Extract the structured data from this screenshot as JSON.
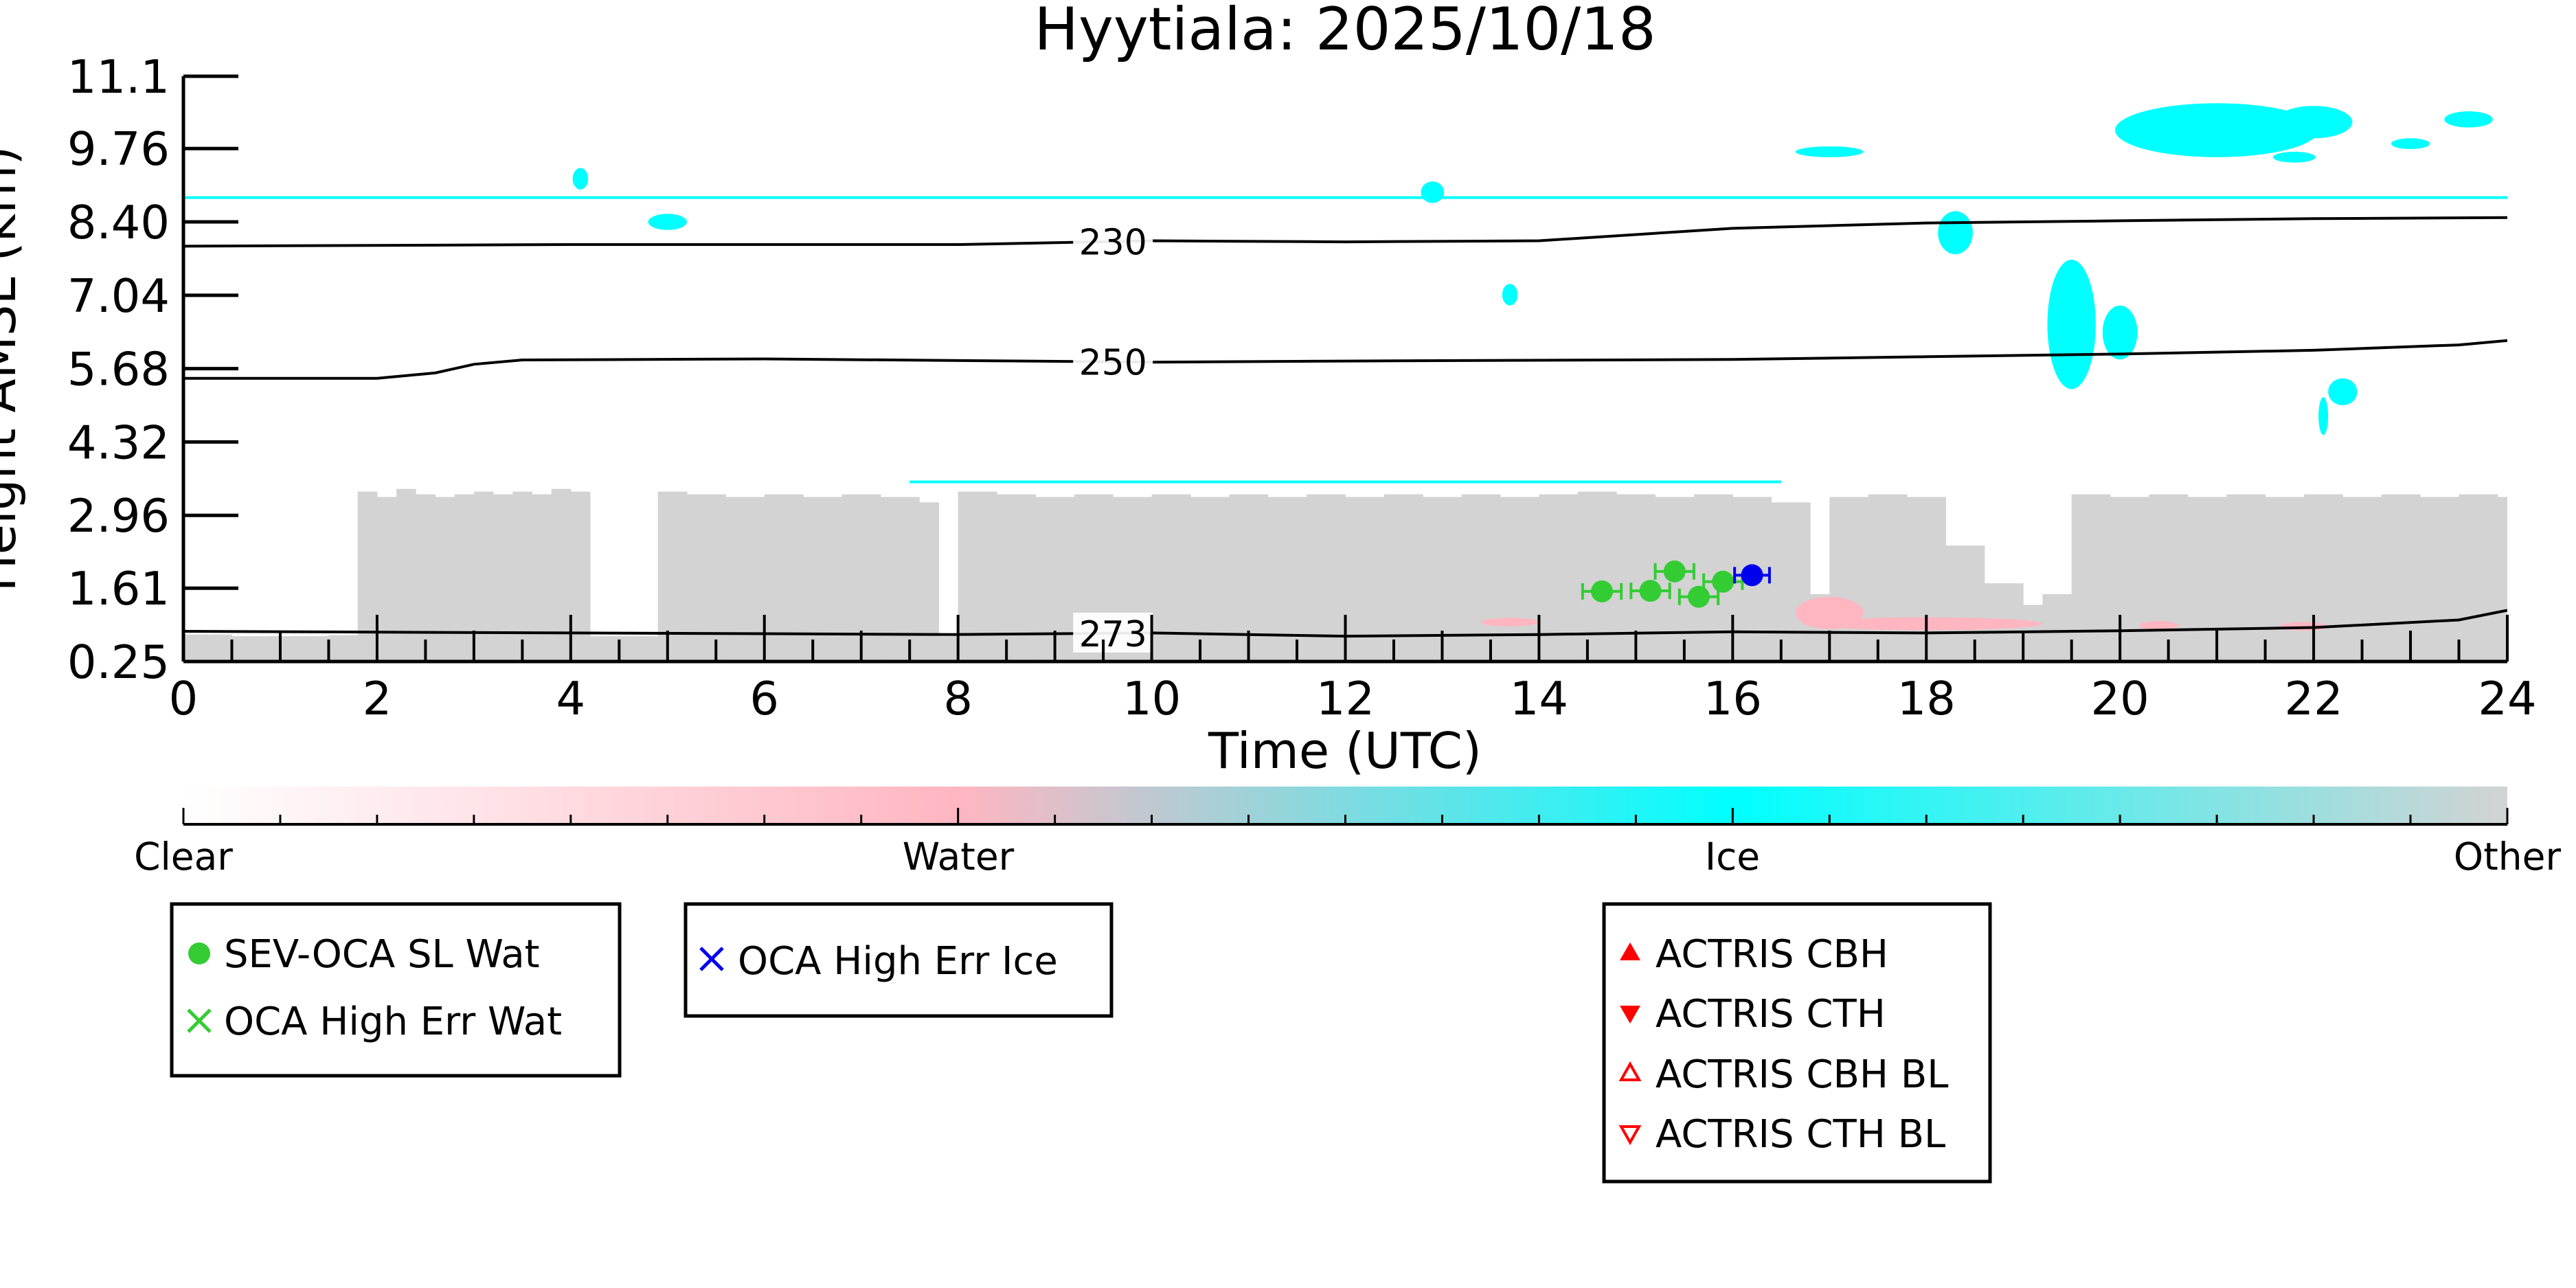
{
  "chart_data": {
    "type": "heatmap",
    "title": "Hyytiala: 2025/10/18",
    "xlabel": "Time (UTC)",
    "ylabel": "Height AMSL (km)",
    "xlim": [
      0,
      24
    ],
    "ylim": [
      0.25,
      11.1
    ],
    "x_ticks": [
      0,
      2,
      4,
      6,
      8,
      10,
      12,
      14,
      16,
      18,
      20,
      22,
      24
    ],
    "y_ticks": [
      0.25,
      1.61,
      2.96,
      4.32,
      5.68,
      7.04,
      8.4,
      9.76,
      11.1
    ],
    "y_tick_labels": [
      "0.25",
      "1.61",
      "2.96",
      "4.32",
      "5.68",
      "7.04",
      "8.40",
      "9.76",
      "11.1"
    ],
    "colors": {
      "clear": "#ffffff",
      "water": "#ffb6c1",
      "ice": "#00ffff",
      "other": "#d3d3d3",
      "sev_oca_water": "#33cc33",
      "oca_ice": "#0000ee",
      "actris": "#ff0000",
      "contour": "#000000"
    },
    "colorbar": {
      "labels": [
        "Clear",
        "Water",
        "Ice",
        "Other"
      ]
    },
    "contours": [
      {
        "label": "230",
        "label_x": 9.6,
        "points": [
          [
            0,
            7.95
          ],
          [
            4,
            7.98
          ],
          [
            8,
            7.98
          ],
          [
            10,
            8.05
          ],
          [
            12,
            8.03
          ],
          [
            14,
            8.05
          ],
          [
            16,
            8.28
          ],
          [
            18,
            8.38
          ],
          [
            20,
            8.42
          ],
          [
            22,
            8.46
          ],
          [
            24,
            8.48
          ]
        ]
      },
      {
        "label": "250",
        "label_x": 9.6,
        "points": [
          [
            0,
            5.5
          ],
          [
            2,
            5.5
          ],
          [
            2.6,
            5.6
          ],
          [
            3,
            5.76
          ],
          [
            3.5,
            5.84
          ],
          [
            6,
            5.86
          ],
          [
            10,
            5.8
          ],
          [
            12,
            5.82
          ],
          [
            16,
            5.85
          ],
          [
            18,
            5.9
          ],
          [
            20,
            5.95
          ],
          [
            22,
            6.02
          ],
          [
            23.5,
            6.12
          ],
          [
            24,
            6.2
          ]
        ]
      },
      {
        "label": "273",
        "label_x": 9.6,
        "points": [
          [
            0,
            0.81
          ],
          [
            4,
            0.78
          ],
          [
            8,
            0.75
          ],
          [
            10,
            0.78
          ],
          [
            12,
            0.72
          ],
          [
            14,
            0.75
          ],
          [
            16,
            0.8
          ],
          [
            18,
            0.78
          ],
          [
            20,
            0.82
          ],
          [
            22,
            0.88
          ],
          [
            23.5,
            1.02
          ],
          [
            24,
            1.2
          ]
        ]
      }
    ],
    "reference_lines": [
      {
        "y": 8.85
      },
      {
        "y": 3.58,
        "xmin": 7.5,
        "xmax": 16.5
      }
    ],
    "regions_other": [
      [
        0,
        0.25,
        0.75
      ],
      [
        0.5,
        0.25,
        0.72
      ],
      [
        1,
        0.25,
        0.72
      ],
      [
        1.5,
        0.25,
        0.74
      ],
      [
        1.8,
        0.25,
        3.4
      ],
      [
        2.0,
        0.25,
        3.3
      ],
      [
        2.2,
        0.25,
        3.45
      ],
      [
        2.4,
        0.25,
        3.35
      ],
      [
        2.6,
        0.25,
        3.3
      ],
      [
        2.8,
        0.25,
        3.35
      ],
      [
        3.0,
        0.25,
        3.4
      ],
      [
        3.2,
        0.25,
        3.35
      ],
      [
        3.4,
        0.25,
        3.4
      ],
      [
        3.6,
        0.25,
        3.35
      ],
      [
        3.8,
        0.25,
        3.45
      ],
      [
        4.0,
        0.25,
        3.4
      ],
      [
        4.2,
        0.25,
        0.72
      ],
      [
        4.4,
        0.25,
        0.72
      ],
      [
        4.6,
        0.25,
        0.72
      ],
      [
        4.9,
        0.25,
        3.4
      ],
      [
        5.2,
        0.25,
        3.35
      ],
      [
        5.6,
        0.25,
        3.3
      ],
      [
        6.0,
        0.25,
        3.35
      ],
      [
        6.4,
        0.25,
        3.3
      ],
      [
        6.8,
        0.25,
        3.35
      ],
      [
        7.2,
        0.25,
        3.3
      ],
      [
        7.6,
        0.25,
        3.2
      ],
      [
        7.8,
        0.25,
        0.72
      ],
      [
        8.0,
        0.25,
        3.4
      ],
      [
        8.4,
        0.25,
        3.35
      ],
      [
        8.8,
        0.25,
        3.3
      ],
      [
        9.2,
        0.25,
        3.35
      ],
      [
        9.6,
        0.25,
        3.3
      ],
      [
        10.0,
        0.25,
        3.35
      ],
      [
        10.4,
        0.25,
        3.3
      ],
      [
        10.8,
        0.25,
        3.35
      ],
      [
        11.2,
        0.25,
        3.3
      ],
      [
        11.6,
        0.25,
        3.35
      ],
      [
        12.0,
        0.25,
        3.3
      ],
      [
        12.4,
        0.25,
        3.35
      ],
      [
        12.8,
        0.25,
        3.3
      ],
      [
        13.2,
        0.25,
        3.35
      ],
      [
        13.6,
        0.25,
        3.3
      ],
      [
        14.0,
        0.25,
        3.35
      ],
      [
        14.4,
        0.25,
        3.4
      ],
      [
        14.8,
        0.25,
        3.35
      ],
      [
        15.2,
        0.25,
        3.3
      ],
      [
        15.6,
        0.25,
        3.35
      ],
      [
        16.0,
        0.25,
        3.3
      ],
      [
        16.4,
        0.25,
        3.2
      ],
      [
        16.8,
        0.25,
        1.5
      ],
      [
        17.0,
        0.25,
        3.3
      ],
      [
        17.4,
        0.25,
        3.35
      ],
      [
        17.8,
        0.25,
        3.3
      ],
      [
        18.2,
        0.25,
        2.4
      ],
      [
        18.6,
        0.25,
        1.7
      ],
      [
        19.0,
        0.25,
        1.3
      ],
      [
        19.2,
        0.25,
        1.5
      ],
      [
        19.5,
        0.25,
        3.35
      ],
      [
        19.9,
        0.25,
        3.3
      ],
      [
        20.3,
        0.25,
        3.35
      ],
      [
        20.7,
        0.25,
        3.3
      ],
      [
        21.1,
        0.25,
        3.35
      ],
      [
        21.5,
        0.25,
        3.3
      ],
      [
        21.9,
        0.25,
        3.35
      ],
      [
        22.3,
        0.25,
        3.3
      ],
      [
        22.7,
        0.25,
        3.35
      ],
      [
        23.1,
        0.25,
        3.3
      ],
      [
        23.5,
        0.25,
        3.35
      ],
      [
        23.9,
        0.25,
        3.3
      ]
    ],
    "regions_ice": [
      [
        19.5,
        6.5,
        0.25,
        1.2
      ],
      [
        20.0,
        6.35,
        0.18,
        0.5
      ],
      [
        21.0,
        10.1,
        1.05,
        0.5
      ],
      [
        22.0,
        10.25,
        0.4,
        0.3
      ],
      [
        23.6,
        10.3,
        0.25,
        0.15
      ],
      [
        18.3,
        8.2,
        0.18,
        0.4
      ],
      [
        22.1,
        4.8,
        0.05,
        0.35
      ],
      [
        22.3,
        5.25,
        0.15,
        0.25
      ],
      [
        5.0,
        8.4,
        0.2,
        0.15
      ],
      [
        12.9,
        8.95,
        0.12,
        0.2
      ],
      [
        17.0,
        9.7,
        0.35,
        0.1
      ],
      [
        21.8,
        9.6,
        0.22,
        0.1
      ],
      [
        23.0,
        9.85,
        0.2,
        0.1
      ],
      [
        13.7,
        7.05,
        0.08,
        0.2
      ],
      [
        4.1,
        9.2,
        0.08,
        0.2
      ]
    ],
    "regions_water": [
      [
        13.7,
        0.98,
        0.3,
        0.08
      ],
      [
        17.0,
        1.15,
        0.35,
        0.3
      ],
      [
        18.0,
        0.95,
        1.2,
        0.12
      ],
      [
        20.4,
        0.92,
        0.2,
        0.08
      ],
      [
        21.9,
        0.9,
        0.25,
        0.08
      ]
    ],
    "series": [
      {
        "name": "SEV-OCA SL Wat",
        "type": "scatter",
        "marker": "circle",
        "color": "#33cc33",
        "points": [
          {
            "x": 14.65,
            "y": 1.55,
            "xerr": 0.2
          },
          {
            "x": 15.15,
            "y": 1.56,
            "xerr": 0.2
          },
          {
            "x": 15.4,
            "y": 1.92,
            "xerr": 0.2
          },
          {
            "x": 15.65,
            "y": 1.45,
            "xerr": 0.2
          },
          {
            "x": 15.9,
            "y": 1.73,
            "xerr": 0.2
          }
        ]
      },
      {
        "name": "OCA High Err Wat",
        "type": "scatter",
        "marker": "x",
        "color": "#33cc33",
        "points": []
      },
      {
        "name": "OCA High Err Ice",
        "type": "scatter",
        "marker": "x",
        "color": "#0000ee",
        "points": [
          {
            "x": 16.2,
            "y": 1.85,
            "xerr": 0.18
          }
        ]
      },
      {
        "name": "ACTRIS CBH",
        "type": "scatter",
        "marker": "triangle-up-filled",
        "color": "#ff0000",
        "points": []
      },
      {
        "name": "ACTRIS CTH",
        "type": "scatter",
        "marker": "triangle-down-filled",
        "color": "#ff0000",
        "points": []
      },
      {
        "name": "ACTRIS CBH BL",
        "type": "scatter",
        "marker": "triangle-up-open",
        "color": "#ff0000",
        "points": []
      },
      {
        "name": "ACTRIS CTH BL",
        "type": "scatter",
        "marker": "triangle-down-open",
        "color": "#ff0000",
        "points": []
      }
    ],
    "legend": {
      "groups": [
        {
          "placement": "bottom-left",
          "items": [
            "SEV-OCA SL Wat",
            "OCA High Err Wat"
          ]
        },
        {
          "placement": "bottom-left-center",
          "items": [
            "OCA High Err Ice"
          ]
        },
        {
          "placement": "bottom-right-center",
          "items": [
            "ACTRIS CBH",
            "ACTRIS CTH",
            "ACTRIS CBH BL",
            "ACTRIS CTH BL"
          ]
        }
      ]
    }
  }
}
